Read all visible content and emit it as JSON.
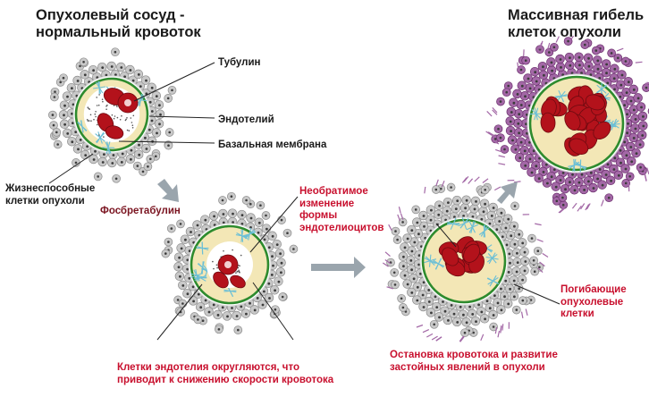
{
  "headings": {
    "normal": [
      "Опухолевый сосуд -",
      "нормальный кровоток"
    ],
    "death": [
      "Массивная гибель",
      "клеток опухоли"
    ]
  },
  "labels": {
    "tubulin": "Тубулин",
    "endothelium": "Эндотелий",
    "basal_membrane": "Базальная мембрана",
    "viable_cells": [
      "Жизнеспособные",
      "клетки опухоли"
    ],
    "drug": "Фосбретабулин",
    "irreversible": [
      "Необратимое",
      "изменение",
      "формы",
      "эндотелиоцитов"
    ],
    "dying_cells": [
      "Погибающие",
      "опухолевые",
      "клетки"
    ],
    "rounding": [
      "Клетки эндотелия округляются, что",
      "приводит к снижению скорости кровотока"
    ],
    "stasis": [
      "Остановка кровотока и развитие",
      "застойных явлений в опухоли"
    ]
  },
  "colors": {
    "tumor_cell": "#c9c9c9",
    "dying_cell": "#a368a6",
    "vessel_wall": "#2e8b2e",
    "endothelium_fill": "#f3e7b6",
    "blood_cell": "#b3121b",
    "tubulin": "#6bbfd6",
    "label_red": "#c8102e",
    "arrow": "#9aa5ad"
  },
  "icons": {
    "arrow": "block-arrow-icon"
  }
}
